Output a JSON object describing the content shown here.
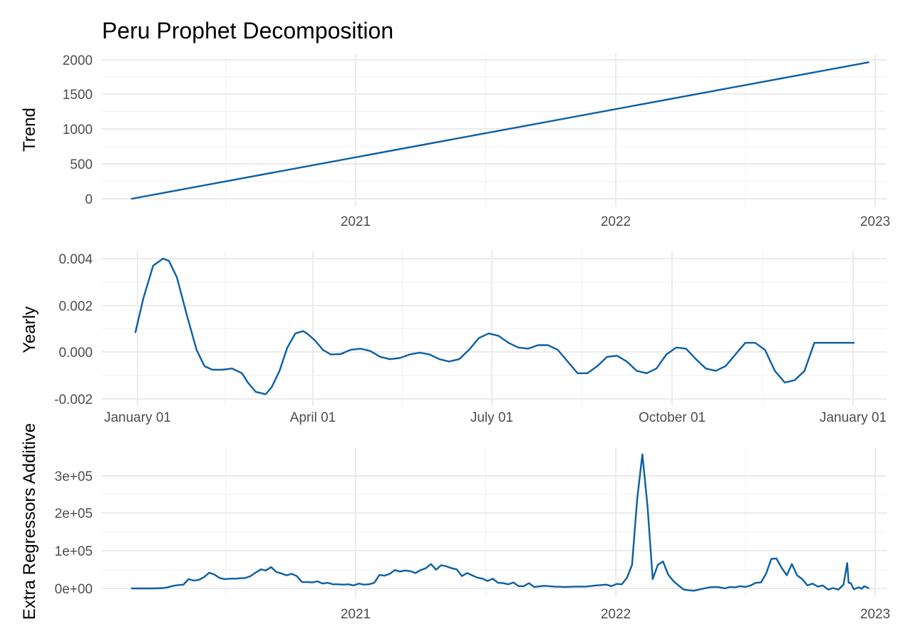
{
  "chart_data": [
    {
      "type": "line",
      "title": "Peru Prophet Decomposition",
      "ylabel": "Trend",
      "xlabel": "",
      "xlim": [
        "2020-03-06",
        "2022-12-12"
      ],
      "ylim": [
        0,
        2000
      ],
      "x_ticks": [
        "2021",
        "2022",
        "2023"
      ],
      "y_ticks": [
        "0",
        "500",
        "1000",
        "1500",
        "2000"
      ],
      "series": [
        {
          "x": [
            "2020-03-06",
            "2022-12-01"
          ],
          "y": [
            0,
            1965
          ]
        }
      ]
    },
    {
      "type": "line",
      "ylabel": "Yearly",
      "xlabel": "",
      "x_unit": "day of year",
      "xlim": [
        1,
        365
      ],
      "ylim": [
        -0.002,
        0.004
      ],
      "x_ticks": [
        "January 01",
        "April 01",
        "July 01",
        "October 01",
        "January 01"
      ],
      "y_ticks": [
        "-0.002",
        "0.000",
        "0.002",
        "0.004"
      ],
      "series": [
        {
          "x": [
            1,
            5,
            10,
            15,
            18,
            22,
            27,
            32,
            36,
            40,
            45,
            50,
            55,
            58,
            62,
            67,
            70,
            74,
            78,
            82,
            86,
            88,
            92,
            96,
            100,
            105,
            110,
            115,
            120,
            125,
            130,
            135,
            140,
            145,
            150,
            155,
            160,
            165,
            170,
            175,
            180,
            185,
            190,
            195,
            200,
            205,
            210,
            215,
            220,
            225,
            230,
            235,
            240,
            245,
            250,
            255,
            260,
            265,
            270,
            275,
            280,
            285,
            290,
            295,
            300,
            305,
            310,
            315,
            320,
            325,
            330,
            335,
            340,
            345,
            350,
            355,
            359,
            365
          ],
          "y": [
            0.00085,
            0.0023,
            0.0037,
            0.004,
            0.0039,
            0.0032,
            0.0016,
            0.0001,
            -0.0006,
            -0.00075,
            -0.00075,
            -0.0007,
            -0.0009,
            -0.0013,
            -0.0017,
            -0.0018,
            -0.0015,
            -0.0008,
            0.0002,
            0.0008,
            0.0009,
            0.0008,
            0.0005,
            0.0001,
            -0.0001,
            -8e-05,
            0.0001,
            0.00015,
            5e-05,
            -0.0002,
            -0.0003,
            -0.00025,
            -0.0001,
            -2e-05,
            -0.0001,
            -0.0003,
            -0.0004,
            -0.0003,
            0.0001,
            0.0006,
            0.0008,
            0.0007,
            0.0004,
            0.0002,
            0.00015,
            0.0003,
            0.0003,
            0.0001,
            -0.0004,
            -0.0009,
            -0.0009,
            -0.0006,
            -0.0002,
            -0.00015,
            -0.0004,
            -0.0008,
            -0.0009,
            -0.0007,
            -0.0001,
            0.0002,
            0.00015,
            -0.0003,
            -0.0007,
            -0.0008,
            -0.0006,
            -0.0001,
            0.0004,
            0.0004,
            0.0001,
            -0.0008,
            -0.0013,
            -0.0012,
            -0.0008,
            0.0004,
            0.0004,
            0.0004,
            0.0004,
            0.0004
          ]
        }
      ]
    },
    {
      "type": "line",
      "ylabel": "Extra Regressors Additive",
      "xlabel": "",
      "xlim": [
        "2020-03-06",
        "2022-12-12"
      ],
      "ylim": [
        0,
        350000
      ],
      "x_ticks": [
        "2021",
        "2022",
        "2023"
      ],
      "y_ticks": [
        "0e+00",
        "1e+05",
        "2e+05",
        "3e+05"
      ],
      "series": [
        {
          "x": [
            "2020-03-06",
            "2020-03-20",
            "2020-04-03",
            "2020-04-17",
            "2020-04-24",
            "2020-05-01",
            "2020-05-08",
            "2020-05-15",
            "2020-05-22",
            "2020-05-29",
            "2020-06-05",
            "2020-06-12",
            "2020-06-19",
            "2020-06-26",
            "2020-07-03",
            "2020-07-10",
            "2020-07-17",
            "2020-07-24",
            "2020-07-31",
            "2020-08-07",
            "2020-08-14",
            "2020-08-21",
            "2020-08-28",
            "2020-09-04",
            "2020-09-11",
            "2020-09-18",
            "2020-09-25",
            "2020-10-02",
            "2020-10-09",
            "2020-10-16",
            "2020-10-23",
            "2020-10-30",
            "2020-11-06",
            "2020-11-13",
            "2020-11-20",
            "2020-11-27",
            "2020-12-04",
            "2020-12-11",
            "2020-12-18",
            "2020-12-25",
            "2021-01-01",
            "2021-01-08",
            "2021-01-15",
            "2021-01-22",
            "2021-01-29",
            "2021-02-05",
            "2021-02-12",
            "2021-02-19",
            "2021-02-26",
            "2021-03-05",
            "2021-03-12",
            "2021-03-19",
            "2021-03-26",
            "2021-04-02",
            "2021-04-09",
            "2021-04-16",
            "2021-04-23",
            "2021-04-30",
            "2021-05-07",
            "2021-05-14",
            "2021-05-21",
            "2021-05-28",
            "2021-06-04",
            "2021-06-11",
            "2021-06-18",
            "2021-06-25",
            "2021-07-02",
            "2021-07-09",
            "2021-07-16",
            "2021-07-23",
            "2021-07-30",
            "2021-08-06",
            "2021-08-13",
            "2021-08-20",
            "2021-08-27",
            "2021-09-03",
            "2021-09-17",
            "2021-10-01",
            "2021-10-15",
            "2021-10-29",
            "2021-11-12",
            "2021-11-26",
            "2021-12-03",
            "2021-12-10",
            "2021-12-17",
            "2021-12-24",
            "2021-12-31",
            "2022-01-07",
            "2022-01-14",
            "2022-01-21",
            "2022-01-28",
            "2022-02-04",
            "2022-02-11",
            "2022-02-18",
            "2022-02-25",
            "2022-03-04",
            "2022-03-11",
            "2022-03-18",
            "2022-03-25",
            "2022-04-01",
            "2022-04-08",
            "2022-04-15",
            "2022-04-22",
            "2022-04-29",
            "2022-05-06",
            "2022-05-13",
            "2022-05-20",
            "2022-05-27",
            "2022-06-03",
            "2022-06-10",
            "2022-06-17",
            "2022-06-24",
            "2022-07-01",
            "2022-07-08",
            "2022-07-15",
            "2022-07-22",
            "2022-07-29",
            "2022-08-05",
            "2022-08-12",
            "2022-08-19",
            "2022-08-26",
            "2022-09-02",
            "2022-09-09",
            "2022-09-16",
            "2022-09-23",
            "2022-09-30",
            "2022-10-07",
            "2022-10-14",
            "2022-10-21",
            "2022-10-28",
            "2022-11-02",
            "2022-11-04",
            "2022-11-07",
            "2022-11-11",
            "2022-11-18",
            "2022-11-22",
            "2022-11-25",
            "2022-12-01"
          ],
          "y": [
            0,
            0,
            0,
            1000,
            3000,
            7000,
            9000,
            10000,
            25000,
            21000,
            23000,
            30000,
            42000,
            37000,
            28000,
            25000,
            26000,
            26000,
            27000,
            28000,
            33000,
            42000,
            51000,
            48000,
            57000,
            44000,
            40000,
            35000,
            39000,
            33000,
            17000,
            17000,
            16000,
            19000,
            13000,
            15000,
            11000,
            11000,
            10000,
            11000,
            8000,
            13000,
            10000,
            11000,
            15000,
            36000,
            34000,
            39000,
            49000,
            45000,
            48000,
            46000,
            41000,
            49000,
            54000,
            65000,
            50000,
            62000,
            59000,
            54000,
            51000,
            33000,
            41000,
            35000,
            29000,
            26000,
            20000,
            26000,
            15000,
            14000,
            11000,
            16000,
            6000,
            6000,
            14000,
            4000,
            7000,
            5000,
            4000,
            5000,
            5000,
            8000,
            9000,
            10000,
            6000,
            12000,
            11000,
            28000,
            63000,
            240000,
            358000,
            220000,
            25000,
            63000,
            72000,
            37000,
            20000,
            8000,
            -3000,
            -5000,
            -6000,
            -3000,
            0,
            3000,
            4000,
            3000,
            0,
            4000,
            3000,
            6000,
            4000,
            8000,
            15000,
            16000,
            40000,
            79000,
            80000,
            55000,
            35000,
            65000,
            35000,
            25000,
            8000,
            13000,
            5000,
            8000,
            -3000,
            1000,
            -3000,
            10000,
            68000,
            15000,
            14000,
            -2000,
            3000,
            -1000,
            6000,
            1000
          ]
        }
      ]
    }
  ]
}
